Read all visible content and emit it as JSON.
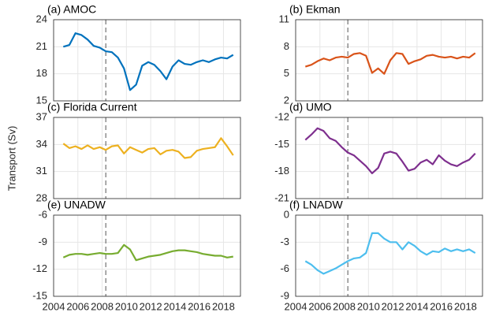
{
  "ylabel": "Transport (Sv)",
  "chart_data": [
    {
      "type": "line",
      "title": "(a) AMOC",
      "color": "#0072bd",
      "vline": 2008.3,
      "grid": true,
      "x": [
        2004.8,
        2005.3,
        2005.8,
        2006.3,
        2006.8,
        2007.3,
        2007.8,
        2008.3,
        2008.8,
        2009.3,
        2009.8,
        2010.3,
        2010.8,
        2011.3,
        2011.8,
        2012.3,
        2012.8,
        2013.3,
        2013.8,
        2014.3,
        2014.8,
        2015.3,
        2015.8,
        2016.3,
        2016.8,
        2017.3,
        2017.8,
        2018.3,
        2018.8
      ],
      "values": [
        21,
        21.2,
        22.5,
        22.3,
        21.8,
        21.1,
        20.9,
        20.5,
        20.4,
        19.8,
        18.6,
        16.2,
        16.8,
        18.9,
        19.3,
        19.0,
        18.3,
        17.4,
        18.8,
        19.5,
        19.1,
        19.0,
        19.3,
        19.5,
        19.3,
        19.6,
        19.8,
        19.7,
        20.1
      ],
      "xlim": [
        2004,
        2019.4
      ],
      "xticks": [
        2004,
        2006,
        2008,
        2010,
        2012,
        2014,
        2016,
        2018
      ],
      "ylim": [
        15,
        24
      ],
      "yticks": [
        15,
        18,
        21,
        24
      ]
    },
    {
      "type": "line",
      "title": "(b) Ekman",
      "color": "#d95319",
      "vline": 2008.3,
      "grid": true,
      "x": [
        2004.8,
        2005.3,
        2005.8,
        2006.3,
        2006.8,
        2007.3,
        2007.8,
        2008.3,
        2008.8,
        2009.3,
        2009.8,
        2010.3,
        2010.8,
        2011.3,
        2011.8,
        2012.3,
        2012.8,
        2013.3,
        2013.8,
        2014.3,
        2014.8,
        2015.3,
        2015.8,
        2016.3,
        2016.8,
        2017.3,
        2017.8,
        2018.3,
        2018.8
      ],
      "values": [
        5.8,
        6.0,
        6.4,
        6.7,
        6.5,
        6.8,
        6.9,
        6.8,
        7.2,
        7.3,
        7.0,
        5.1,
        5.6,
        5.0,
        6.5,
        7.3,
        7.2,
        6.1,
        6.4,
        6.6,
        7.0,
        7.1,
        6.9,
        6.8,
        6.9,
        6.7,
        6.9,
        6.8,
        7.3
      ],
      "xlim": [
        2004,
        2019.4
      ],
      "xticks": [
        2004,
        2006,
        2008,
        2010,
        2012,
        2014,
        2016,
        2018
      ],
      "ylim": [
        2,
        11
      ],
      "yticks": [
        2,
        5,
        8,
        11
      ]
    },
    {
      "type": "line",
      "title": "(c) Florida Current",
      "color": "#edb120",
      "vline": 2008.3,
      "grid": true,
      "x": [
        2004.8,
        2005.3,
        2005.8,
        2006.3,
        2006.8,
        2007.3,
        2007.8,
        2008.3,
        2008.8,
        2009.3,
        2009.8,
        2010.3,
        2010.8,
        2011.3,
        2011.8,
        2012.3,
        2012.8,
        2013.3,
        2013.8,
        2014.3,
        2014.8,
        2015.3,
        2015.8,
        2016.3,
        2016.8,
        2017.3,
        2017.8,
        2018.3,
        2018.8
      ],
      "values": [
        34.1,
        33.6,
        33.8,
        33.5,
        33.9,
        33.5,
        33.7,
        33.4,
        33.8,
        33.9,
        33.0,
        33.7,
        33.4,
        33.1,
        33.5,
        33.6,
        32.9,
        33.3,
        33.4,
        33.2,
        32.5,
        32.6,
        33.3,
        33.5,
        33.6,
        33.7,
        34.7,
        33.8,
        32.8
      ],
      "xlim": [
        2004,
        2019.4
      ],
      "xticks": [
        2004,
        2006,
        2008,
        2010,
        2012,
        2014,
        2016,
        2018
      ],
      "ylim": [
        28,
        37
      ],
      "yticks": [
        28,
        31,
        34,
        37
      ]
    },
    {
      "type": "line",
      "title": "(d) UMO",
      "color": "#7e2f8e",
      "vline": 2008.3,
      "grid": true,
      "x": [
        2004.8,
        2005.3,
        2005.8,
        2006.3,
        2006.8,
        2007.3,
        2007.8,
        2008.3,
        2008.8,
        2009.3,
        2009.8,
        2010.3,
        2010.8,
        2011.3,
        2011.8,
        2012.3,
        2012.8,
        2013.3,
        2013.8,
        2014.3,
        2014.8,
        2015.3,
        2015.8,
        2016.3,
        2016.8,
        2017.3,
        2017.8,
        2018.3,
        2018.8
      ],
      "values": [
        -14.5,
        -13.9,
        -13.2,
        -13.5,
        -14.3,
        -14.6,
        -15.3,
        -15.9,
        -16.2,
        -16.8,
        -17.4,
        -18.2,
        -17.6,
        -16.0,
        -15.8,
        -16.0,
        -16.9,
        -17.9,
        -17.7,
        -17.0,
        -16.7,
        -17.2,
        -16.2,
        -16.8,
        -17.2,
        -17.4,
        -17.0,
        -16.7,
        -16.0
      ],
      "xlim": [
        2004,
        2019.4
      ],
      "xticks": [
        2004,
        2006,
        2008,
        2010,
        2012,
        2014,
        2016,
        2018
      ],
      "ylim": [
        -21,
        -12
      ],
      "yticks": [
        -21,
        -18,
        -15,
        -12
      ]
    },
    {
      "type": "line",
      "title": "(e) UNADW",
      "color": "#77ac30",
      "vline": 2008.3,
      "grid": true,
      "x": [
        2004.8,
        2005.3,
        2005.8,
        2006.3,
        2006.8,
        2007.3,
        2007.8,
        2008.3,
        2008.8,
        2009.3,
        2009.8,
        2010.3,
        2010.8,
        2011.3,
        2011.8,
        2012.3,
        2012.8,
        2013.3,
        2013.8,
        2014.3,
        2014.8,
        2015.3,
        2015.8,
        2016.3,
        2016.8,
        2017.3,
        2017.8,
        2018.3,
        2018.8
      ],
      "values": [
        -10.7,
        -10.4,
        -10.3,
        -10.3,
        -10.4,
        -10.3,
        -10.2,
        -10.3,
        -10.3,
        -10.2,
        -9.3,
        -9.8,
        -11.0,
        -10.8,
        -10.6,
        -10.5,
        -10.4,
        -10.2,
        -10.0,
        -9.9,
        -9.9,
        -10.0,
        -10.1,
        -10.3,
        -10.4,
        -10.5,
        -10.5,
        -10.7,
        -10.6
      ],
      "xlim": [
        2004,
        2019.4
      ],
      "xticks": [
        2004,
        2006,
        2008,
        2010,
        2012,
        2014,
        2016,
        2018
      ],
      "ylim": [
        -15,
        -6
      ],
      "yticks": [
        -15,
        -12,
        -9,
        -6
      ]
    },
    {
      "type": "line",
      "title": "(f) LNADW",
      "color": "#4dbeee",
      "vline": 2008.3,
      "grid": true,
      "x": [
        2004.8,
        2005.3,
        2005.8,
        2006.3,
        2006.8,
        2007.3,
        2007.8,
        2008.3,
        2008.8,
        2009.3,
        2009.8,
        2010.3,
        2010.8,
        2011.3,
        2011.8,
        2012.3,
        2012.8,
        2013.3,
        2013.8,
        2014.3,
        2014.8,
        2015.3,
        2015.8,
        2016.3,
        2016.8,
        2017.3,
        2017.8,
        2018.3,
        2018.8
      ],
      "values": [
        -5.1,
        -5.5,
        -6.1,
        -6.5,
        -6.2,
        -5.9,
        -5.5,
        -5.1,
        -4.8,
        -4.7,
        -4.2,
        -2.0,
        -2.0,
        -2.6,
        -3.0,
        -3.0,
        -3.8,
        -3.0,
        -3.4,
        -4.0,
        -4.4,
        -4.0,
        -4.1,
        -3.7,
        -4.0,
        -3.8,
        -4.0,
        -3.8,
        -4.2
      ],
      "xlim": [
        2004,
        2019.4
      ],
      "xticks": [
        2004,
        2006,
        2008,
        2010,
        2012,
        2014,
        2016,
        2018
      ],
      "ylim": [
        -9,
        0
      ],
      "yticks": [
        -9,
        -6,
        -3,
        0
      ]
    }
  ]
}
